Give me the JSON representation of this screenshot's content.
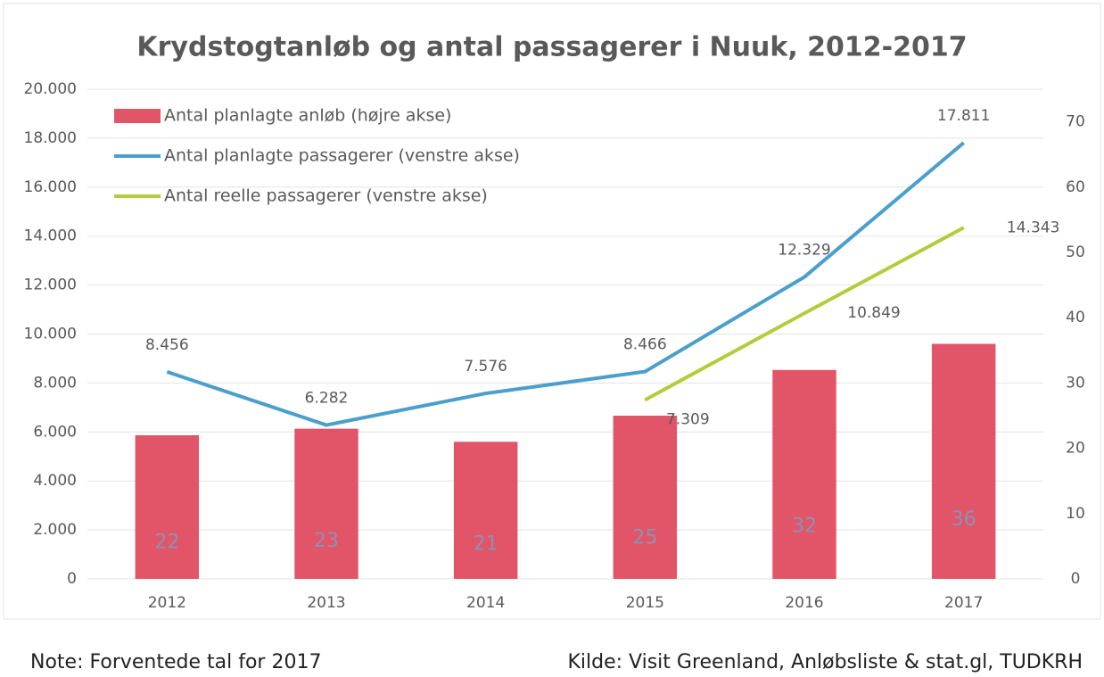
{
  "chart_data": {
    "type": "bar",
    "title": "Krydstogtanløb og antal passagerer i Nuuk, 2012-2017",
    "categories": [
      "2012",
      "2013",
      "2014",
      "2015",
      "2016",
      "2017"
    ],
    "series": [
      {
        "name": "Antal planlagte anløb (højre akse)",
        "type": "bar",
        "axis": "y2",
        "color": "#e25468",
        "values": [
          22,
          23,
          21,
          25,
          32,
          36
        ]
      },
      {
        "name": "Antal planlagte passagerer (venstre akse)",
        "type": "line",
        "color": "#4a9fcc",
        "values": [
          8456,
          6282,
          7576,
          8466,
          12329,
          17811
        ],
        "value_labels": [
          "8.456",
          "6.282",
          "7.576",
          "8.466",
          "12.329",
          "17.811"
        ]
      },
      {
        "name": "Antal reelle passagerer (venstre akse)",
        "type": "line",
        "color": "#b4cc3a",
        "values": [
          null,
          null,
          null,
          7309,
          10849,
          14343
        ],
        "value_labels": [
          null,
          null,
          null,
          "7.309",
          "10.849",
          "14.343"
        ]
      }
    ],
    "ylim": [
      0,
      20000
    ],
    "yticks": [
      0,
      {
        "value": 2000,
        "label": "2.000"
      },
      {
        "value": 4000,
        "label": "4.000"
      },
      {
        "value": 6000,
        "label": "6.000"
      },
      {
        "value": 8000,
        "label": "8.000"
      },
      {
        "value": 10000,
        "label": "10.000"
      },
      {
        "value": 12000,
        "label": "12.000"
      },
      {
        "value": 14000,
        "label": "14.000"
      },
      {
        "value": 16000,
        "label": "16.000"
      },
      {
        "value": 18000,
        "label": "18.000"
      },
      {
        "value": 20000,
        "label": "20.000"
      }
    ],
    "y2lim": [
      0,
      75
    ],
    "y2ticks": [
      0,
      10,
      20,
      30,
      40,
      50,
      60,
      70
    ],
    "grid": true,
    "legend": "top-left",
    "note": "Note: Forventede tal for 2017",
    "source": "Kilde: Visit Greenland, Anløbsliste & stat.gl, TUDKRH"
  }
}
